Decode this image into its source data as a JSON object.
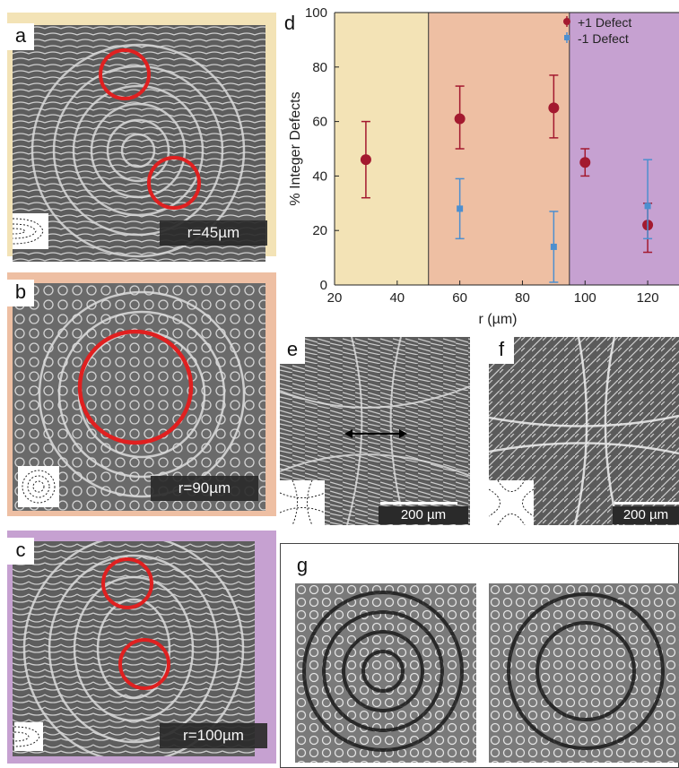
{
  "colors": {
    "zone_small": "#f3e3b6",
    "zone_mid": "#eebfa3",
    "zone_large": "#c6a1d1",
    "plus_defect": "#a3192f",
    "minus_defect": "#4d8fcf",
    "circle_marker": "#e02020"
  },
  "panels": {
    "a": {
      "letter": "a",
      "radius_label": "r=45µm"
    },
    "b": {
      "letter": "b",
      "radius_label": "r=90µm"
    },
    "c": {
      "letter": "c",
      "radius_label": "r=100µm"
    },
    "d": {
      "letter": "d"
    },
    "e": {
      "letter": "e",
      "scalebar_label": "200 µm"
    },
    "f": {
      "letter": "f",
      "scalebar_label": "200 µm"
    },
    "g": {
      "letter": "g"
    }
  },
  "chart_data": {
    "type": "scatter",
    "xlabel": "r (µm)",
    "ylabel": "% Integer Defects",
    "xlim": [
      20,
      130
    ],
    "ylim": [
      0,
      100
    ],
    "xticks": [
      20,
      40,
      60,
      80,
      100,
      120
    ],
    "yticks": [
      0,
      20,
      40,
      60,
      80,
      100
    ],
    "grid": false,
    "legend_position": "top-right",
    "background_bands": [
      {
        "from": 20,
        "to": 50,
        "color": "#f3e3b6"
      },
      {
        "from": 50,
        "to": 95,
        "color": "#eebfa3"
      },
      {
        "from": 95,
        "to": 130,
        "color": "#c6a1d1"
      }
    ],
    "series": [
      {
        "name": "+1 Defect",
        "color": "#a3192f",
        "marker": "circle",
        "x": [
          30,
          60,
          90,
          100,
          120
        ],
        "y": [
          46,
          61,
          65,
          45,
          22
        ],
        "err_low": [
          32,
          50,
          54,
          40,
          12
        ],
        "err_high": [
          60,
          73,
          77,
          50,
          30
        ]
      },
      {
        "name": "-1 Defect",
        "color": "#4d8fcf",
        "marker": "square",
        "x": [
          60,
          90,
          120
        ],
        "y": [
          28,
          14,
          29
        ],
        "err_low": [
          17,
          1,
          17
        ],
        "err_high": [
          39,
          27,
          46
        ]
      }
    ]
  }
}
